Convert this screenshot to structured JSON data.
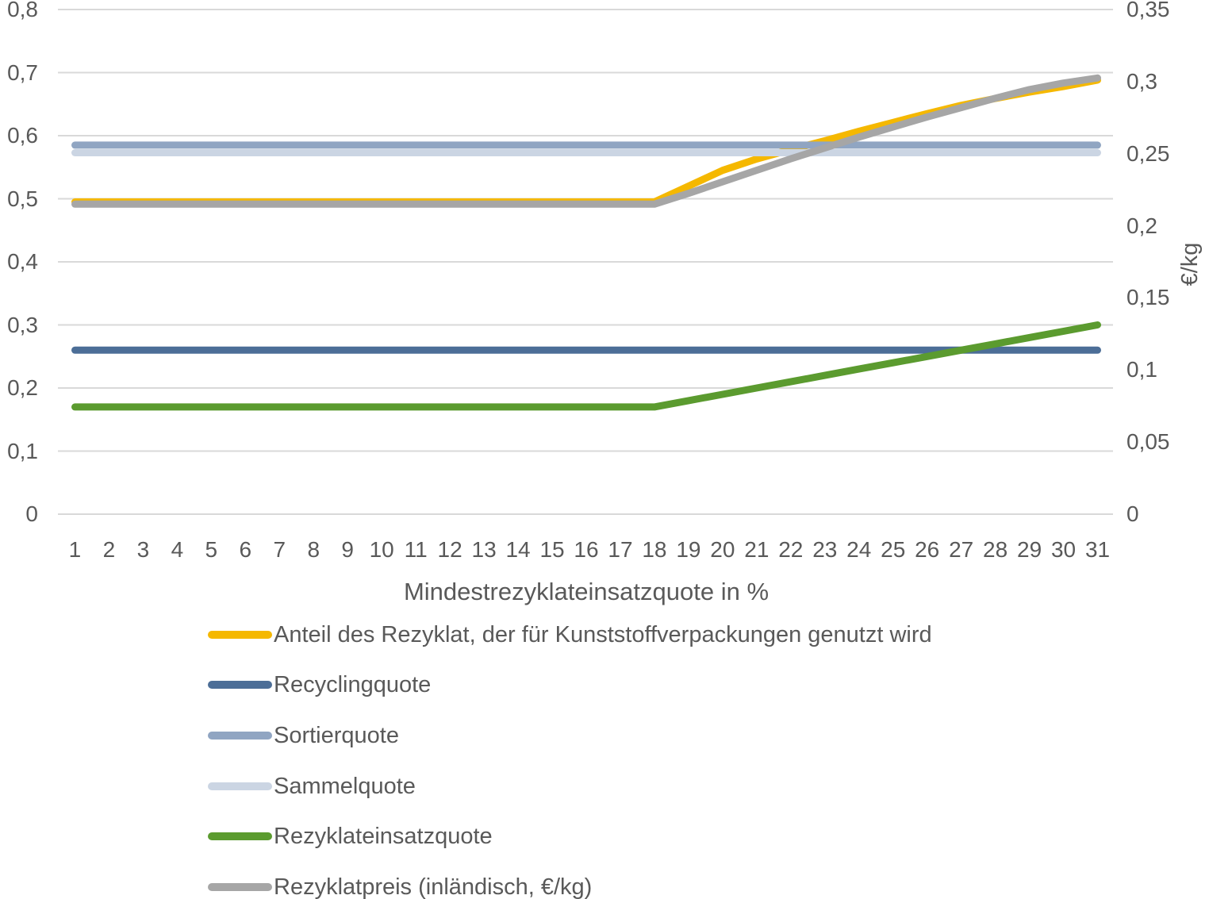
{
  "chart_data": {
    "type": "line",
    "title": "",
    "xlabel": "Mindestrezyklateinsatzquote in %",
    "x_categories": [
      1,
      2,
      3,
      4,
      5,
      6,
      7,
      8,
      9,
      10,
      11,
      12,
      13,
      14,
      15,
      16,
      17,
      18,
      19,
      20,
      21,
      22,
      23,
      24,
      25,
      26,
      27,
      28,
      29,
      30,
      31
    ],
    "grid": true,
    "legend_position": "bottom",
    "colors": {
      "text": "#595959",
      "gridline": "#d9d9d9"
    },
    "left_axis": {
      "min": 0,
      "max": 0.8,
      "tick_labels_bottom_to_top": [
        "0",
        "0,1",
        "0,2",
        "0,3",
        "0,4",
        "0,5",
        "0,6",
        "0,7",
        "0,8"
      ]
    },
    "right_axis": {
      "label": "€/kg",
      "min": 0,
      "max": 0.35,
      "tick_labels_bottom_to_top": [
        "0",
        "0,05",
        "0,1",
        "0,15",
        "0,2",
        "0,25",
        "0,3",
        "0,35"
      ]
    },
    "series": [
      {
        "name": "Anteil des Rezyklat, der für Kunststoffverpackungen genutzt wird",
        "color": "#f5b800",
        "axis": "left",
        "values": [
          0.495,
          0.495,
          0.495,
          0.495,
          0.495,
          0.495,
          0.495,
          0.495,
          0.495,
          0.495,
          0.495,
          0.495,
          0.495,
          0.495,
          0.495,
          0.495,
          0.495,
          0.495,
          0.52,
          0.545,
          0.563,
          0.578,
          0.592,
          0.607,
          0.621,
          0.635,
          0.648,
          0.659,
          0.669,
          0.678,
          0.688
        ]
      },
      {
        "name": "Recyclingquote",
        "color": "#4c6e97",
        "axis": "left",
        "values": [
          0.26,
          0.26,
          0.26,
          0.26,
          0.26,
          0.26,
          0.26,
          0.26,
          0.26,
          0.26,
          0.26,
          0.26,
          0.26,
          0.26,
          0.26,
          0.26,
          0.26,
          0.26,
          0.26,
          0.26,
          0.26,
          0.26,
          0.26,
          0.26,
          0.26,
          0.26,
          0.26,
          0.26,
          0.26,
          0.26,
          0.26
        ]
      },
      {
        "name": "Sortierquote",
        "color": "#90a5c2",
        "axis": "left",
        "values": [
          0.585,
          0.585,
          0.585,
          0.585,
          0.585,
          0.585,
          0.585,
          0.585,
          0.585,
          0.585,
          0.585,
          0.585,
          0.585,
          0.585,
          0.585,
          0.585,
          0.585,
          0.585,
          0.585,
          0.585,
          0.585,
          0.585,
          0.585,
          0.585,
          0.585,
          0.585,
          0.585,
          0.585,
          0.585,
          0.585,
          0.585
        ]
      },
      {
        "name": "Sammelquote",
        "color": "#cbd5e3",
        "axis": "left",
        "values": [
          0.573,
          0.573,
          0.573,
          0.573,
          0.573,
          0.573,
          0.573,
          0.573,
          0.573,
          0.573,
          0.573,
          0.573,
          0.573,
          0.573,
          0.573,
          0.573,
          0.573,
          0.573,
          0.573,
          0.573,
          0.573,
          0.573,
          0.573,
          0.573,
          0.573,
          0.573,
          0.573,
          0.573,
          0.573,
          0.573,
          0.573
        ]
      },
      {
        "name": "Rezyklateinsatzquote",
        "color": "#5b9b2f",
        "axis": "left",
        "values": [
          0.17,
          0.17,
          0.17,
          0.17,
          0.17,
          0.17,
          0.17,
          0.17,
          0.17,
          0.17,
          0.17,
          0.17,
          0.17,
          0.17,
          0.17,
          0.17,
          0.17,
          0.17,
          0.18,
          0.19,
          0.2,
          0.21,
          0.22,
          0.23,
          0.24,
          0.25,
          0.26,
          0.27,
          0.28,
          0.29,
          0.3
        ]
      },
      {
        "name": "Rezyklatpreis (inländisch, €/kg)",
        "color": "#a6a6a6",
        "axis": "right",
        "values": [
          0.215,
          0.215,
          0.215,
          0.215,
          0.215,
          0.215,
          0.215,
          0.215,
          0.215,
          0.215,
          0.215,
          0.215,
          0.215,
          0.215,
          0.215,
          0.215,
          0.215,
          0.215,
          0.2225,
          0.2305,
          0.2385,
          0.2465,
          0.254,
          0.2615,
          0.2685,
          0.2755,
          0.282,
          0.2885,
          0.2945,
          0.299,
          0.3025
        ]
      }
    ]
  }
}
